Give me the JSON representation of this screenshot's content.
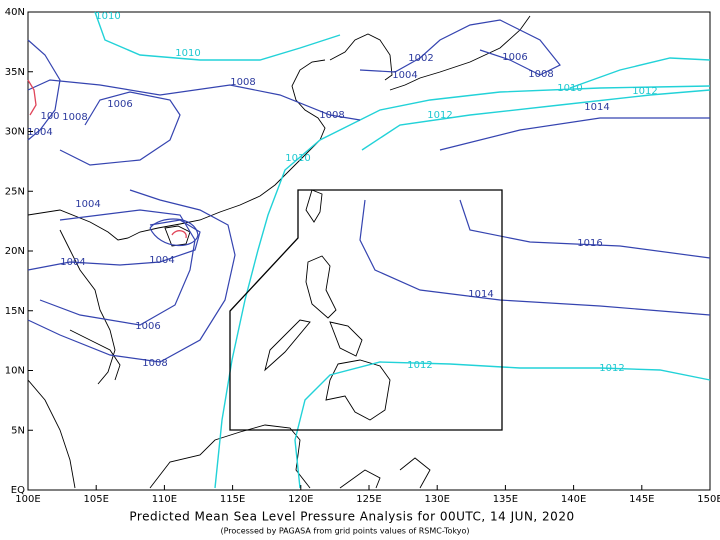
{
  "map": {
    "lon_ticks": [
      {
        "value": 100,
        "label": "100E"
      },
      {
        "value": 105,
        "label": "105E"
      },
      {
        "value": 110,
        "label": "110E"
      },
      {
        "value": 115,
        "label": "115E"
      },
      {
        "value": 120,
        "label": "120E"
      },
      {
        "value": 125,
        "label": "125E"
      },
      {
        "value": 130,
        "label": "130E"
      },
      {
        "value": 135,
        "label": "135E"
      },
      {
        "value": 140,
        "label": "140E"
      },
      {
        "value": 145,
        "label": "145E"
      },
      {
        "value": 150,
        "label": "150E"
      }
    ],
    "lat_ticks": [
      {
        "value": 0,
        "label": "EQ"
      },
      {
        "value": 5,
        "label": "5N"
      },
      {
        "value": 10,
        "label": "10N"
      },
      {
        "value": 15,
        "label": "15N"
      },
      {
        "value": 20,
        "label": "20N"
      },
      {
        "value": 25,
        "label": "25N"
      },
      {
        "value": 30,
        "label": "30N"
      },
      {
        "value": 35,
        "label": "35N"
      },
      {
        "value": 40,
        "label": "40N"
      }
    ],
    "lonlim": [
      100,
      150
    ],
    "latlim": [
      0,
      40
    ],
    "isobar_labels": [
      "1010",
      "1010",
      "1010",
      "1010",
      "1008",
      "1008",
      "1008",
      "1008",
      "1008",
      "1006",
      "1006",
      "1006",
      "1004",
      "1004",
      "1004",
      "1004",
      "1004",
      "100",
      "1002",
      "1012",
      "1012",
      "1012",
      "1012",
      "1014",
      "1014",
      "1016"
    ]
  },
  "title": "Predicted Mean Sea Level Pressure Analysis for 00UTC, 14 JUN, 2020",
  "subtitle": "(Processed by PAGASA from grid points values of RSMC-Tokyo)"
}
